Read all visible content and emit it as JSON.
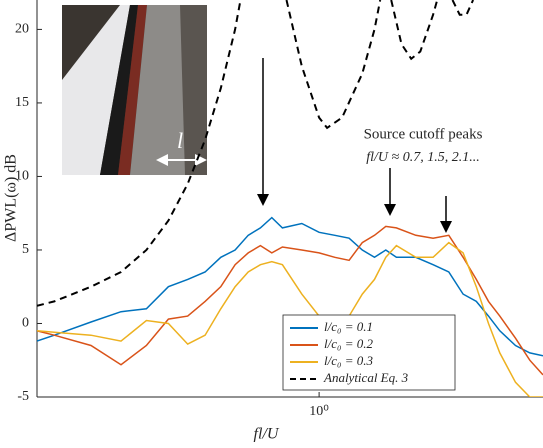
{
  "chart_data": {
    "type": "line",
    "xlabel": "fl/U",
    "ylabel": "ΔPWL(ω) dB",
    "xscale": "log",
    "xlim": [
      0.18,
      3.9
    ],
    "xticks": [
      {
        "value": 1,
        "label": "10⁰"
      }
    ],
    "ylim": [
      -5,
      22
    ],
    "yticks": [
      -5,
      0,
      5,
      10,
      15,
      20
    ],
    "legend": "lower right",
    "annotation": [
      "Source cutoff peaks",
      "fl/U ≈ 0.7, 1.5, 2.1..."
    ],
    "inset_label": "l",
    "series": [
      {
        "name": "l/c₀ = 0.1",
        "color": "#0072bd",
        "dash": "solid",
        "x": [
          0.18,
          0.2,
          0.25,
          0.3,
          0.35,
          0.4,
          0.45,
          0.5,
          0.55,
          0.6,
          0.65,
          0.7,
          0.75,
          0.8,
          0.9,
          1.0,
          1.1,
          1.2,
          1.3,
          1.4,
          1.5,
          1.6,
          1.8,
          2.0,
          2.2,
          2.4,
          2.6,
          2.8,
          3.0,
          3.3,
          3.6,
          3.9
        ],
        "values": [
          -1.2,
          -0.8,
          0.1,
          0.8,
          1.0,
          2.5,
          3.0,
          3.5,
          4.5,
          5.0,
          6.0,
          6.5,
          7.2,
          6.5,
          6.8,
          6.2,
          6.0,
          5.8,
          5.0,
          4.5,
          5.0,
          4.5,
          4.5,
          4.0,
          3.5,
          2.0,
          1.5,
          0.5,
          -0.5,
          -1.5,
          -2.0,
          -2.2
        ]
      },
      {
        "name": "l/c₀ = 0.2",
        "color": "#d95319",
        "dash": "solid",
        "x": [
          0.18,
          0.2,
          0.25,
          0.3,
          0.35,
          0.4,
          0.45,
          0.5,
          0.55,
          0.6,
          0.65,
          0.7,
          0.75,
          0.8,
          0.9,
          1.0,
          1.1,
          1.2,
          1.3,
          1.4,
          1.5,
          1.6,
          1.8,
          2.0,
          2.2,
          2.4,
          2.6,
          2.8,
          3.0,
          3.3,
          3.6,
          3.9
        ],
        "values": [
          -0.5,
          -0.8,
          -1.5,
          -2.8,
          -1.5,
          0.3,
          0.5,
          1.5,
          2.5,
          4.0,
          4.8,
          5.3,
          4.8,
          5.2,
          5.0,
          4.8,
          4.5,
          4.3,
          5.5,
          6.0,
          6.6,
          6.5,
          6.0,
          5.8,
          6.0,
          4.5,
          3.0,
          1.5,
          0.5,
          -1.0,
          -2.5,
          -3.5
        ]
      },
      {
        "name": "l/c₀ = 0.3",
        "color": "#edb120",
        "dash": "solid",
        "x": [
          0.18,
          0.2,
          0.25,
          0.3,
          0.35,
          0.4,
          0.45,
          0.5,
          0.55,
          0.6,
          0.65,
          0.7,
          0.75,
          0.8,
          0.9,
          1.0,
          1.1,
          1.2,
          1.3,
          1.4,
          1.5,
          1.6,
          1.8,
          2.0,
          2.2,
          2.4,
          2.6,
          2.8,
          3.0,
          3.3,
          3.6,
          3.9
        ],
        "values": [
          -0.5,
          -0.6,
          -0.8,
          -1.2,
          0.2,
          0,
          -1.4,
          -0.8,
          1.0,
          2.5,
          3.5,
          4.0,
          4.2,
          4.0,
          2.0,
          0.5,
          -0.5,
          0.5,
          2.0,
          3.0,
          4.5,
          5.3,
          4.5,
          4.5,
          5.5,
          4.8,
          2.5,
          0,
          -2.0,
          -4.0,
          -5.0,
          -5.0
        ]
      },
      {
        "name": "Analytical Eq. 3",
        "color": "#000000",
        "dash": "dashed",
        "x": [
          0.18,
          0.2,
          0.25,
          0.3,
          0.35,
          0.4,
          0.45,
          0.5,
          0.55,
          0.6,
          0.62,
          0.7,
          0.82,
          0.9,
          1.0,
          1.05,
          1.15,
          1.3,
          1.4,
          1.45,
          1.5,
          1.55,
          1.65,
          1.75,
          1.85,
          2.0,
          2.05,
          2.15,
          2.25,
          2.35,
          2.45,
          2.55
        ],
        "values": [
          1.2,
          1.5,
          2.5,
          3.5,
          5.0,
          7.0,
          9.5,
          12.5,
          16,
          20,
          22,
          null,
          22,
          17.5,
          14,
          13.3,
          14,
          17,
          20,
          22,
          null,
          22,
          19,
          18,
          18.5,
          21,
          22,
          null,
          22,
          21,
          21,
          22
        ]
      }
    ]
  }
}
